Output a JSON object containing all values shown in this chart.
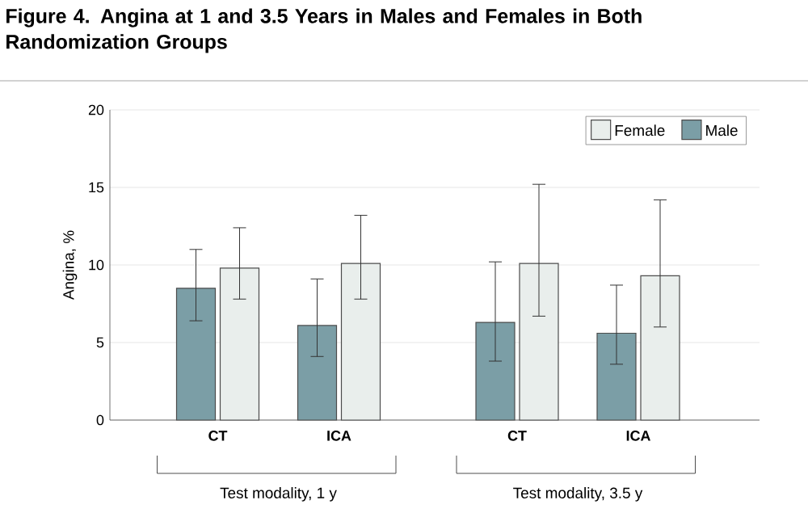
{
  "chart_data": {
    "type": "bar",
    "title": "Figure 4. Angina at 1 and 3.5 Years in Males and Females in Both Randomization Groups",
    "ylabel": "Angina, %",
    "categories": [
      "CT",
      "ICA",
      "CT",
      "ICA"
    ],
    "series": [
      {
        "name": "Male",
        "color": "#7b9ea6",
        "values": [
          8.5,
          6.1,
          6.3,
          5.6
        ],
        "errors": [
          [
            6.4,
            11.0
          ],
          [
            4.1,
            9.1
          ],
          [
            3.8,
            10.2
          ],
          [
            3.6,
            8.7
          ]
        ]
      },
      {
        "name": "Female",
        "color": "#e9eeec",
        "values": [
          9.8,
          10.1,
          10.1,
          9.3
        ],
        "errors": [
          [
            7.8,
            12.4
          ],
          [
            7.8,
            13.2
          ],
          [
            6.7,
            15.2
          ],
          [
            6.0,
            14.2
          ]
        ]
      }
    ],
    "ylim": [
      0,
      20
    ],
    "yticks": [
      0,
      5,
      10,
      15,
      20
    ],
    "grid": "y",
    "legend": "top right",
    "annotations": [
      "Test modality, 1 y",
      "Test modality, 3.5 y"
    ]
  }
}
